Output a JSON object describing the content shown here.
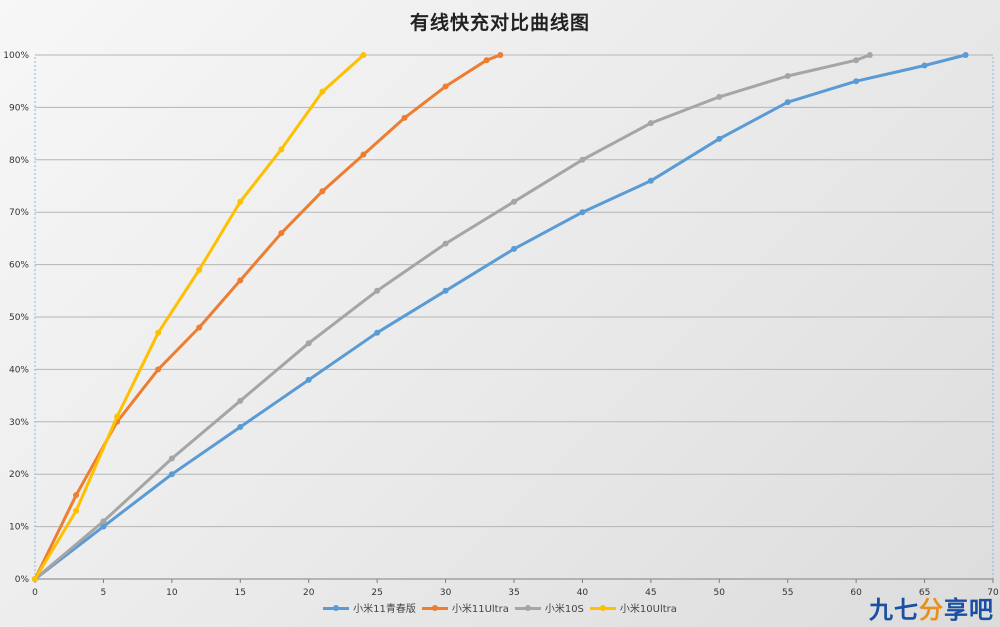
{
  "chart_data": {
    "type": "line",
    "title": "有线快充对比曲线图",
    "xlabel": "",
    "ylabel": "",
    "xlim": [
      0,
      70
    ],
    "ylim": [
      0,
      100
    ],
    "x_ticks": [
      0,
      5,
      10,
      15,
      20,
      25,
      30,
      35,
      40,
      45,
      50,
      55,
      60,
      65,
      70
    ],
    "y_ticks": [
      0,
      10,
      20,
      30,
      40,
      50,
      60,
      70,
      80,
      90,
      100
    ],
    "y_tick_labels": [
      "0%",
      "10%",
      "20%",
      "30%",
      "40%",
      "50%",
      "60%",
      "70%",
      "80%",
      "90%",
      "100%"
    ],
    "grid": "horizontal",
    "legend_position": "bottom",
    "series": [
      {
        "name": "小米11青春版",
        "color": "#5b9bd5",
        "points": [
          [
            0,
            0
          ],
          [
            5,
            10
          ],
          [
            10,
            20
          ],
          [
            15,
            29
          ],
          [
            20,
            38
          ],
          [
            25,
            47
          ],
          [
            30,
            55
          ],
          [
            35,
            63
          ],
          [
            40,
            70
          ],
          [
            45,
            76
          ],
          [
            50,
            84
          ],
          [
            55,
            91
          ],
          [
            60,
            95
          ],
          [
            65,
            98
          ],
          [
            68,
            100
          ]
        ]
      },
      {
        "name": "小米11Ultra",
        "color": "#ed7d31",
        "points": [
          [
            0,
            0
          ],
          [
            3,
            16
          ],
          [
            6,
            30
          ],
          [
            9,
            40
          ],
          [
            12,
            48
          ],
          [
            15,
            57
          ],
          [
            18,
            66
          ],
          [
            21,
            74
          ],
          [
            24,
            81
          ],
          [
            27,
            88
          ],
          [
            30,
            94
          ],
          [
            33,
            99
          ],
          [
            34,
            100
          ]
        ]
      },
      {
        "name": "小米10S",
        "color": "#a5a5a5",
        "points": [
          [
            0,
            0
          ],
          [
            5,
            11
          ],
          [
            10,
            23
          ],
          [
            15,
            34
          ],
          [
            20,
            45
          ],
          [
            25,
            55
          ],
          [
            30,
            64
          ],
          [
            35,
            72
          ],
          [
            40,
            80
          ],
          [
            45,
            87
          ],
          [
            50,
            92
          ],
          [
            55,
            96
          ],
          [
            60,
            99
          ],
          [
            61,
            100
          ]
        ]
      },
      {
        "name": "小米10Ultra",
        "color": "#ffc000",
        "points": [
          [
            0,
            0
          ],
          [
            3,
            13
          ],
          [
            6,
            31
          ],
          [
            9,
            47
          ],
          [
            12,
            59
          ],
          [
            15,
            72
          ],
          [
            18,
            82
          ],
          [
            21,
            93
          ],
          [
            24,
            100
          ]
        ]
      }
    ]
  },
  "watermark": {
    "part1": "九七",
    "part2": "分",
    "part3": "享吧"
  }
}
